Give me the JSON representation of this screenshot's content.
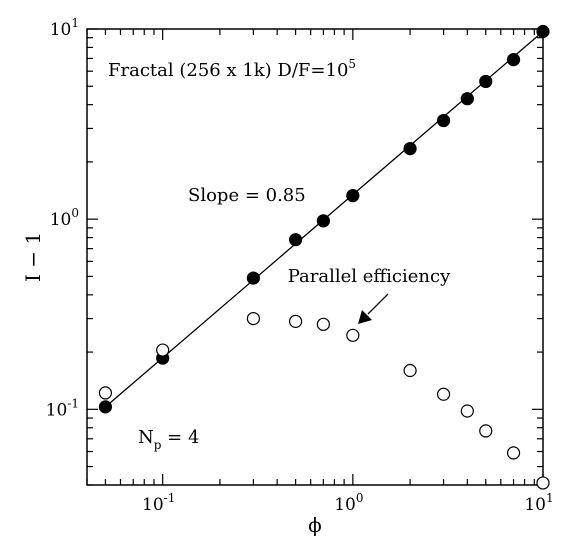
{
  "chart_data": {
    "type": "scatter",
    "title": "",
    "xlabel": "ϕ",
    "ylabel": "I − 1",
    "xscale": "log",
    "yscale": "log",
    "xlim": [
      0.04,
      10
    ],
    "ylim": [
      0.04,
      10
    ],
    "grid": false,
    "x_ticks": [
      {
        "value": 0.1,
        "base": "10",
        "exp": "-1"
      },
      {
        "value": 1,
        "base": "10",
        "exp": "0"
      },
      {
        "value": 10,
        "base": "10",
        "exp": "1"
      }
    ],
    "y_ticks": [
      {
        "value": 0.1,
        "base": "10",
        "exp": "-1"
      },
      {
        "value": 1,
        "base": "10",
        "exp": "0"
      },
      {
        "value": 10,
        "base": "10",
        "exp": "1"
      }
    ],
    "series": [
      {
        "marker": "filled-circle",
        "x": [
          0.05,
          0.1,
          0.3,
          0.5,
          0.7,
          1,
          2,
          3,
          4,
          5,
          7,
          10
        ],
        "y": [
          0.103,
          0.186,
          0.49,
          0.78,
          0.98,
          1.33,
          2.35,
          3.3,
          4.3,
          5.3,
          6.9,
          9.7
        ]
      },
      {
        "marker": "open-circle",
        "x": [
          0.05,
          0.1,
          0.3,
          0.5,
          0.7,
          1,
          2,
          3,
          4,
          5,
          7,
          10
        ],
        "y": [
          0.122,
          0.205,
          0.3,
          0.29,
          0.28,
          0.245,
          0.16,
          0.12,
          0.098,
          0.077,
          0.059,
          0.041
        ]
      }
    ],
    "fit_line": {
      "x": [
        0.05,
        10
      ],
      "y": [
        0.103,
        9.7
      ]
    },
    "annotations": {
      "dataset": {
        "prefix": "Fractal (256 x 1k) D/F=10",
        "exp": "5"
      },
      "slope": "Slope = 0.85",
      "parallel": "Parallel efficiency",
      "np": {
        "base": "N",
        "sub": "p",
        "suffix": " = 4"
      }
    }
  }
}
